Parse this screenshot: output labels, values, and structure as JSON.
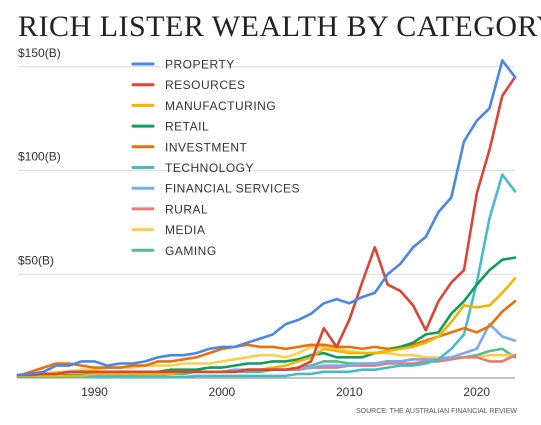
{
  "chart_data": {
    "type": "line",
    "title": "RICH LISTER WEALTH BY CATEGORY",
    "xlabel": "",
    "ylabel": "",
    "xlim": [
      1984,
      2023
    ],
    "ylim": [
      0,
      160
    ],
    "x_ticks": [
      1990,
      2000,
      2010,
      2020
    ],
    "y_ticks": [
      {
        "value": 50,
        "label": "$50(B)"
      },
      {
        "value": 100,
        "label": "$100(B)"
      },
      {
        "value": 150,
        "label": "$150(B)"
      }
    ],
    "grid": "horizontal",
    "legend_position": "top-left",
    "source": "SOURCE: THE AUSTRALIAN FINANCIAL REVIEW",
    "x": [
      1984,
      1985,
      1986,
      1987,
      1988,
      1989,
      1990,
      1991,
      1992,
      1993,
      1994,
      1995,
      1996,
      1997,
      1998,
      1999,
      2000,
      2001,
      2002,
      2003,
      2004,
      2005,
      2006,
      2007,
      2008,
      2009,
      2010,
      2011,
      2012,
      2013,
      2014,
      2015,
      2016,
      2017,
      2018,
      2019,
      2020,
      2021,
      2022,
      2023
    ],
    "series": [
      {
        "name": "PROPERTY",
        "color": "#4A86E8",
        "values": [
          1.5,
          2,
          3,
          6,
          6,
          8,
          8,
          6,
          7,
          7,
          8,
          10,
          11,
          11,
          12,
          14,
          15,
          15,
          17,
          19,
          21,
          26,
          28,
          31,
          36,
          38,
          36,
          39,
          41,
          50,
          55,
          63,
          68,
          80,
          87,
          114,
          124,
          130,
          153,
          145
        ]
      },
      {
        "name": "RESOURCES",
        "color": "#DB4437",
        "values": [
          1.5,
          1.5,
          2,
          2,
          3,
          3,
          3,
          3,
          3,
          3,
          3,
          3,
          3,
          3,
          3,
          3,
          3,
          3,
          4,
          4,
          4,
          4,
          5,
          8,
          24,
          15,
          28,
          46,
          63,
          45,
          42,
          35,
          23,
          37,
          46,
          52,
          89,
          110,
          136,
          145
        ]
      },
      {
        "name": "MANUFACTURING",
        "color": "#F4B400",
        "values": [
          1,
          1,
          1,
          1,
          1,
          1,
          2,
          2,
          2,
          2,
          2,
          2,
          2,
          3,
          3,
          3,
          3,
          3,
          4,
          4,
          5,
          6,
          8,
          10,
          14,
          13,
          12,
          12,
          12,
          13,
          14,
          15,
          17,
          20,
          27,
          35,
          34,
          35,
          41,
          48
        ]
      },
      {
        "name": "RETAIL",
        "color": "#0F9D58",
        "values": [
          1,
          1,
          1,
          1,
          1.5,
          1.5,
          2,
          2,
          2,
          2,
          3,
          3,
          4,
          4,
          4,
          5,
          5,
          6,
          7,
          7,
          8,
          8,
          9,
          11,
          12,
          10,
          10,
          10,
          12,
          13,
          15,
          17,
          21,
          22,
          31,
          37,
          45,
          52,
          57,
          58
        ]
      },
      {
        "name": "INVESTMENT",
        "color": "#E8710A",
        "values": [
          1,
          3,
          5,
          7,
          7,
          6,
          5,
          5,
          5,
          6,
          6,
          8,
          8,
          9,
          10,
          12,
          14,
          15,
          16,
          15,
          15,
          14,
          15,
          16,
          16,
          15,
          15,
          14,
          15,
          14,
          15,
          16,
          18,
          20,
          22,
          24,
          22,
          25,
          32,
          37
        ]
      },
      {
        "name": "TECHNOLOGY",
        "color": "#46BDC6",
        "values": [
          0.5,
          0.5,
          0.5,
          0.5,
          0.5,
          0.5,
          0.5,
          0.5,
          0.5,
          0.5,
          0.5,
          0.5,
          0.5,
          0.5,
          1,
          1,
          1,
          1,
          1,
          1,
          1,
          1,
          2,
          2,
          3,
          3,
          3,
          4,
          4,
          5,
          6,
          6,
          7,
          9,
          14,
          21,
          46,
          77,
          98,
          90
        ]
      },
      {
        "name": "FINANCIAL SERVICES",
        "color": "#7BAAF7",
        "values": [
          0.5,
          1,
          1,
          1,
          1,
          1,
          1,
          1,
          2,
          2,
          2,
          2,
          2,
          3,
          3,
          3,
          3,
          4,
          4,
          4,
          4,
          4,
          5,
          5,
          6,
          6,
          6,
          7,
          7,
          8,
          8,
          9,
          9,
          9,
          10,
          12,
          14,
          26,
          20,
          18
        ]
      },
      {
        "name": "RURAL",
        "color": "#E67C73",
        "values": [
          0.5,
          1,
          1,
          1,
          1,
          1,
          1,
          2,
          2,
          2,
          2,
          2,
          2,
          3,
          3,
          3,
          3,
          3,
          4,
          4,
          4,
          4,
          4,
          5,
          5,
          5,
          6,
          6,
          6,
          7,
          7,
          7,
          8,
          8,
          9,
          10,
          10,
          8,
          8,
          11
        ]
      },
      {
        "name": "MEDIA",
        "color": "#FCD04F",
        "values": [
          1,
          2,
          2,
          3,
          3,
          4,
          4,
          5,
          5,
          5,
          6,
          6,
          6,
          7,
          7,
          7,
          8,
          9,
          10,
          11,
          11,
          10,
          12,
          15,
          15,
          14,
          13,
          12,
          12,
          12,
          11,
          11,
          10,
          10,
          10,
          10,
          10,
          11,
          11,
          11
        ]
      },
      {
        "name": "GAMING",
        "color": "#57BB8A",
        "values": [
          0.5,
          0.5,
          0.5,
          0.5,
          0.5,
          0.5,
          1,
          1,
          1,
          1,
          1,
          1,
          2,
          2,
          3,
          3,
          3,
          3,
          3,
          3,
          4,
          4,
          5,
          6,
          8,
          8,
          7,
          7,
          7,
          8,
          8,
          9,
          9,
          9,
          10,
          10,
          11,
          13,
          14,
          10
        ]
      }
    ]
  }
}
